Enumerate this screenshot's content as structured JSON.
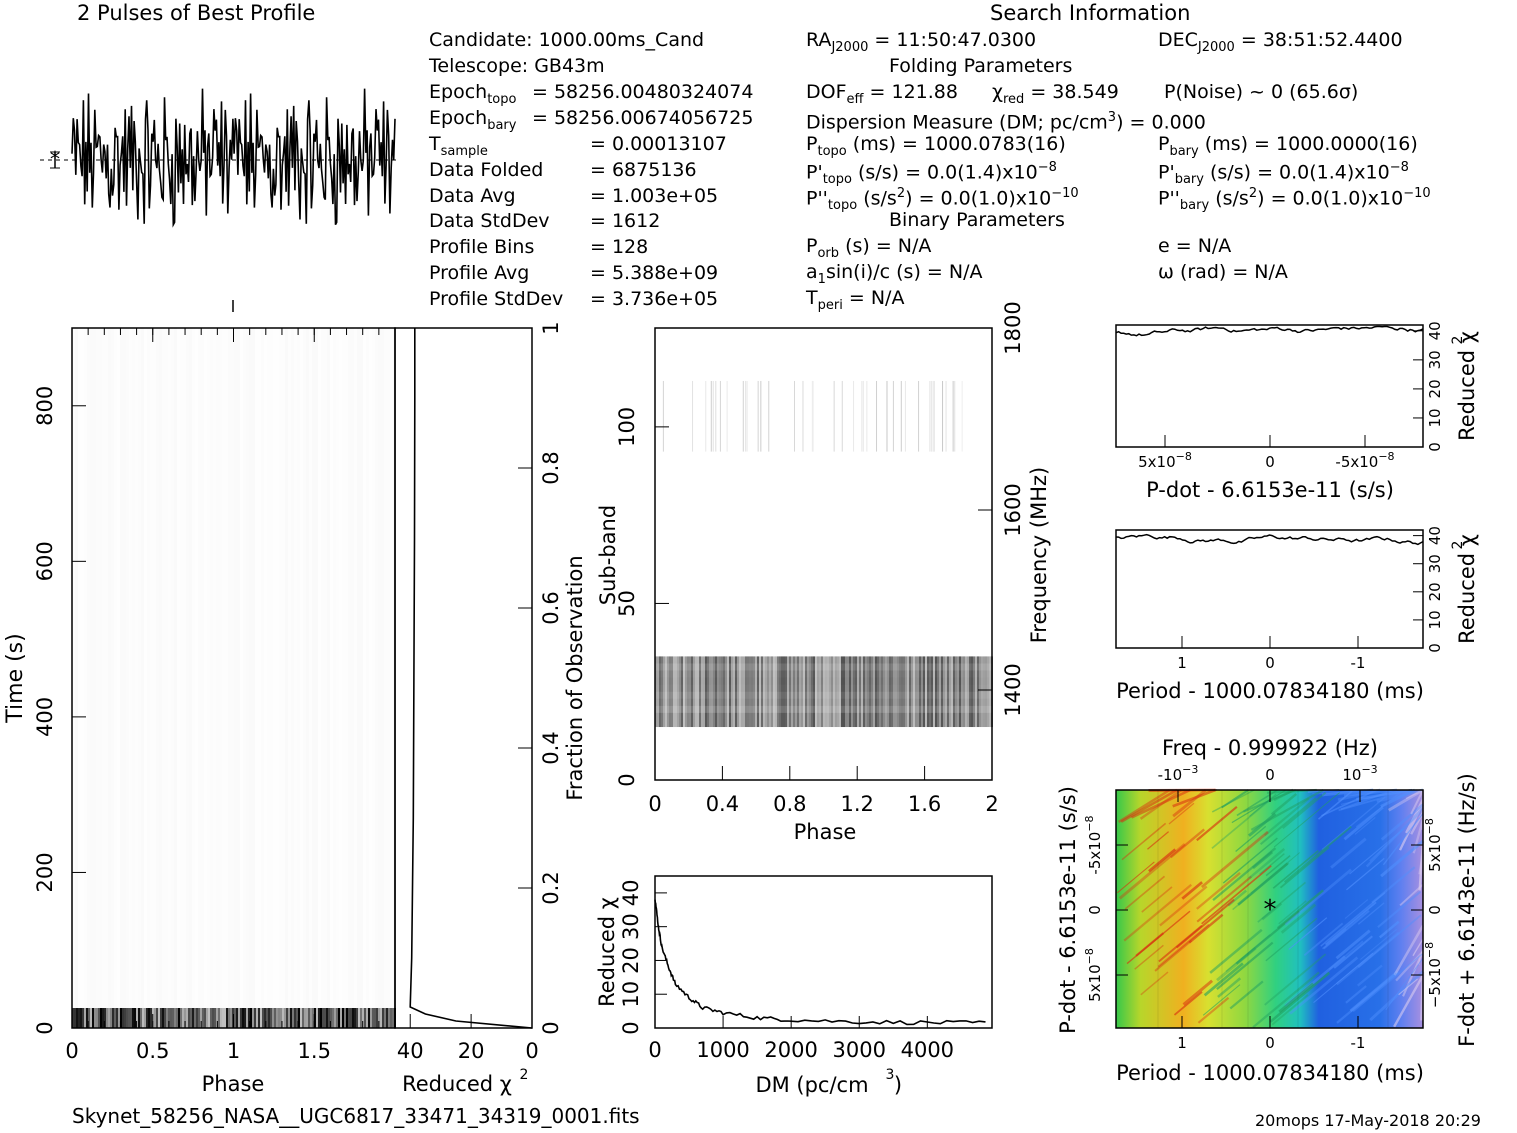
{
  "header": {
    "profile_title": "2 Pulses of Best Profile",
    "search_title": "Search Information"
  },
  "info_left": [
    "Candidate:  1000.00ms_Cand",
    "Telescope:  GB43m",
    "Epoch",
    "Epoch",
    "T",
    "Data Folded",
    "Data Avg",
    "Data StdDev",
    "Profile Bins",
    "Profile Avg",
    "Profile StdDev"
  ],
  "info_left_sub": [
    "topo",
    "bary",
    "sample"
  ],
  "info_left_values": [
    "= 58256.00480324074",
    "= 58256.00674056725",
    "=   0.00013107",
    "=   6875136",
    "=   1.003e+05",
    "=   1612",
    "=   128",
    "=   5.388e+09",
    "=   3.736e+05"
  ],
  "info_right": {
    "ra": "RA",
    "ra_sub": "J2000",
    "ra_val": "= 11:50:47.0300",
    "dec": "DEC",
    "dec_sub": "J2000",
    "dec_val": "= 38:51:52.4400",
    "folding_title": "Folding Parameters",
    "dof": "DOF",
    "dof_sub": "eff",
    "dof_val": "= 121.88",
    "chi": "χ",
    "chi_sub": "red",
    "chi_val": "= 38.549",
    "pnoise": "P(Noise) ~ 0    (65.6σ)",
    "dm_line": "Dispersion Measure (DM; pc/cm",
    "dm_tail": ") = 0.000",
    "ptopo": "P",
    "ptopo_sub": "topo",
    "ptopo_val": "(ms) =  1000.0783(16)",
    "pbary": "P",
    "pbary_sub": "bary",
    "pbary_val": "(ms) =  1000.0000(16)",
    "pdtopo": "P'",
    "pdtopo_sub": "topo",
    "pdtopo_val": "(s/s) = 0.0(1.4)x10",
    "pdbary": "P'",
    "pdbary_sub": "bary",
    "pdbary_val": "(s/s) = 0.0(1.4)x10",
    "pddtopo": "P''",
    "pddtopo_sub": "topo",
    "pddtopo_val": "(s/s",
    "pddtopo_tail": ") = 0.0(1.0)x10",
    "pddbary": "P''",
    "pddbary_sub": "bary",
    "pddbary_val": "(s/s",
    "pddbary_tail": ") = 0.0(1.0)x10",
    "binary_title": "Binary Parameters",
    "porb": "P",
    "porb_sub": "orb",
    "porb_val": "(s) = N/A",
    "ecc": "e = N/A",
    "a1": "a",
    "a1_sub": "1",
    "a1_val": "sin(i)/c (s) = N/A",
    "omega": "ω (rad) = N/A",
    "tperi": "T",
    "tperi_sub": "peri",
    "tperi_val": "= N/A"
  },
  "footer": {
    "filename": "Skynet_58256_NASA__UGC6817_33471_34319_0001.fits",
    "stamp": "20mops 17-May-2018 20:29"
  },
  "chart_data": [
    {
      "type": "line",
      "name": "profile",
      "title": "2 Pulses of Best Profile",
      "x_range": [
        0,
        2
      ],
      "note_values": "noise-like profile, 256 samples over 2 pulses"
    },
    {
      "type": "heatmap",
      "name": "time-phase",
      "xlabel": "Phase",
      "ylabel": "Time (s)",
      "xlim": [
        0,
        2
      ],
      "ylim": [
        0,
        900
      ],
      "x_ticks": [
        "0",
        "0.5",
        "1",
        "1.5"
      ],
      "y_ticks": [
        "0",
        "200",
        "400",
        "600",
        "800"
      ]
    },
    {
      "type": "line",
      "name": "reduced-chi2-vs-fraction",
      "xlabel": "Reduced χ",
      "ylabel": "Fraction of Observation",
      "xlim": [
        45,
        0
      ],
      "ylim": [
        0,
        1
      ],
      "x_ticks": [
        "40",
        "20",
        "0"
      ],
      "y_ticks": [
        "0",
        "0.2",
        "0.4",
        "0.6",
        "0.8",
        "1"
      ],
      "points": [
        [
          0,
          0
        ],
        [
          25,
          0.01
        ],
        [
          35,
          0.02
        ],
        [
          40,
          0.03
        ],
        [
          39.5,
          0.1
        ],
        [
          39,
          0.3
        ],
        [
          38.8,
          0.5
        ],
        [
          38.6,
          0.7
        ],
        [
          38.5,
          0.9
        ],
        [
          38.5,
          1.0
        ]
      ]
    },
    {
      "type": "heatmap",
      "name": "subband-phase",
      "xlabel": "Phase",
      "ylabel": "Sub-band",
      "y2label": "Frequency (MHz)",
      "xlim": [
        0,
        2
      ],
      "ylim": [
        0,
        128
      ],
      "x_ticks": [
        "0",
        "0.4",
        "0.8",
        "1.2",
        "1.6",
        "2"
      ],
      "y_ticks": [
        "0",
        "50",
        "100"
      ],
      "y2_ticks": [
        "1400",
        "1600",
        "1800"
      ]
    },
    {
      "type": "line",
      "name": "dm-curve",
      "xlabel": "DM (pc/cm",
      "ylabel": "Reduced χ",
      "xlim": [
        0,
        4950
      ],
      "ylim": [
        0,
        45
      ],
      "x_ticks": [
        "0",
        "1000",
        "2000",
        "3000",
        "4000"
      ],
      "y_ticks": [
        "0",
        "10",
        "20",
        "30",
        "40"
      ],
      "points": [
        [
          0,
          38.5
        ],
        [
          50,
          30
        ],
        [
          100,
          24
        ],
        [
          200,
          18
        ],
        [
          300,
          13
        ],
        [
          500,
          9
        ],
        [
          700,
          6
        ],
        [
          1000,
          4.5
        ],
        [
          1500,
          3
        ],
        [
          2000,
          2.4
        ],
        [
          3000,
          1.8
        ],
        [
          4000,
          1.6
        ],
        [
          4950,
          1.5
        ]
      ]
    },
    {
      "type": "line",
      "name": "pdot-curve",
      "xlabel": "P-dot - 6.6153e-11 (s/s)",
      "ylabel": "Reduced χ",
      "ylim": [
        0,
        42
      ],
      "x_ticks": [
        "5x10",
        "0",
        "-5x10"
      ],
      "y_ticks": [
        "0",
        "10",
        "20",
        "30",
        "40"
      ]
    },
    {
      "type": "line",
      "name": "period-curve",
      "xlabel": "Period - 1000.07834180 (ms)",
      "ylabel": "Reduced χ",
      "ylim": [
        0,
        42
      ],
      "x_ticks": [
        "1",
        "0",
        "-1"
      ],
      "y_ticks": [
        "0",
        "10",
        "20",
        "30",
        "40"
      ]
    },
    {
      "type": "heatmap",
      "name": "p-pdot-plane",
      "title": "Freq - 0.999922 (Hz)",
      "xlabel": "Period - 1000.07834180 (ms)",
      "ylabel": "P-dot - 6.6153e-11 (s/s)",
      "y2label": "F-dot + 6.6143e-11 (Hz/s)",
      "x_ticks": [
        "1",
        "0",
        "-1"
      ],
      "top_ticks": [
        "-10",
        "0",
        "10"
      ],
      "y_ticks": [
        "-5x10",
        "0",
        "5x10"
      ]
    }
  ]
}
